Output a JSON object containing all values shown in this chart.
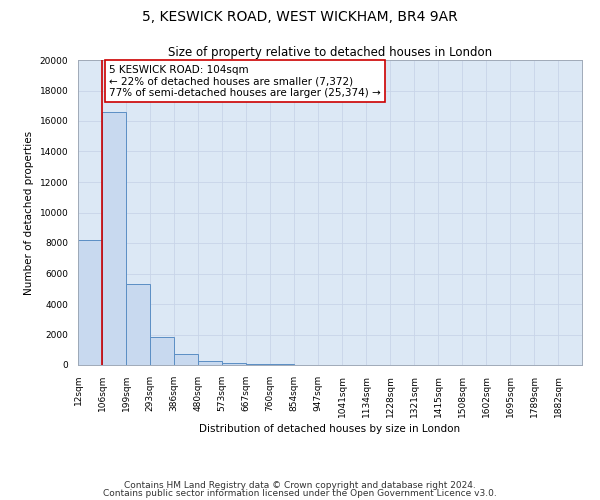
{
  "title": "5, KESWICK ROAD, WEST WICKHAM, BR4 9AR",
  "subtitle": "Size of property relative to detached houses in London",
  "xlabel": "Distribution of detached houses by size in London",
  "ylabel": "Number of detached properties",
  "bin_labels": [
    "12sqm",
    "106sqm",
    "199sqm",
    "293sqm",
    "386sqm",
    "480sqm",
    "573sqm",
    "667sqm",
    "760sqm",
    "854sqm",
    "947sqm",
    "1041sqm",
    "1134sqm",
    "1228sqm",
    "1321sqm",
    "1415sqm",
    "1508sqm",
    "1602sqm",
    "1695sqm",
    "1789sqm",
    "1882sqm"
  ],
  "bar_heights": [
    8200,
    16600,
    5300,
    1850,
    750,
    280,
    130,
    90,
    60,
    0,
    0,
    0,
    0,
    0,
    0,
    0,
    0,
    0,
    0,
    0,
    0
  ],
  "bar_color": "#c8d9ef",
  "bar_edge_color": "#5b8ec4",
  "property_line_x": 1,
  "property_line_color": "#cc0000",
  "annotation_line1": "5 KESWICK ROAD: 104sqm",
  "annotation_line2": "← 22% of detached houses are smaller (7,372)",
  "annotation_line3": "77% of semi-detached houses are larger (25,374) →",
  "annotation_box_facecolor": "#ffffff",
  "annotation_box_edgecolor": "#cc0000",
  "ylim": [
    0,
    20000
  ],
  "yticks": [
    0,
    2000,
    4000,
    6000,
    8000,
    10000,
    12000,
    14000,
    16000,
    18000,
    20000
  ],
  "footer_line1": "Contains HM Land Registry data © Crown copyright and database right 2024.",
  "footer_line2": "Contains public sector information licensed under the Open Government Licence v3.0.",
  "grid_color": "#c8d4e8",
  "background_color": "#dce8f5",
  "fig_background": "#ffffff",
  "title_fontsize": 10,
  "subtitle_fontsize": 8.5,
  "axis_label_fontsize": 7.5,
  "tick_fontsize": 6.5,
  "annotation_fontsize": 7.5,
  "footer_fontsize": 6.5
}
